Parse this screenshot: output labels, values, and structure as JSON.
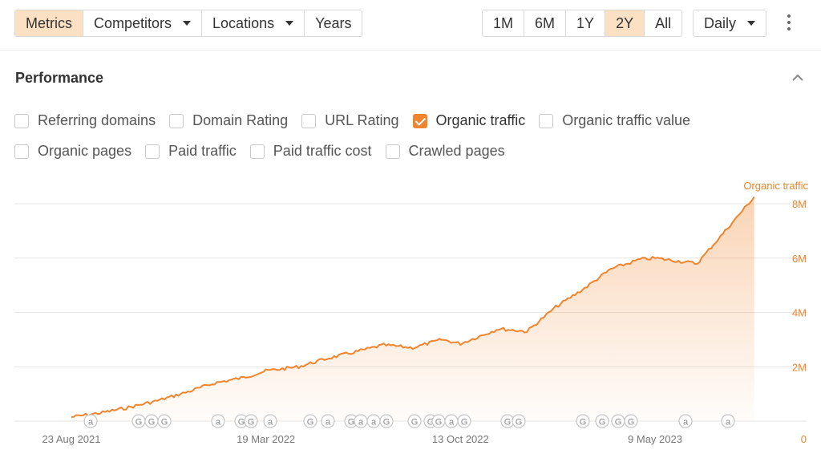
{
  "toolbar": {
    "left_tabs": [
      {
        "label": "Metrics",
        "active": true
      },
      {
        "label": "Competitors",
        "dropdown": true
      },
      {
        "label": "Locations",
        "dropdown": true
      },
      {
        "label": "Years"
      }
    ],
    "ranges": [
      {
        "label": "1M"
      },
      {
        "label": "6M"
      },
      {
        "label": "1Y"
      },
      {
        "label": "2Y",
        "active": true
      },
      {
        "label": "All"
      }
    ],
    "interval": {
      "label": "Daily"
    }
  },
  "section": {
    "title": "Performance",
    "row1": [
      {
        "label": "Referring domains",
        "checked": false
      },
      {
        "label": "Domain Rating",
        "checked": false
      },
      {
        "label": "URL Rating",
        "checked": false
      },
      {
        "label": "Organic traffic",
        "checked": true
      },
      {
        "label": "Organic traffic value",
        "checked": false
      }
    ],
    "row2": [
      {
        "label": "Organic pages",
        "checked": false
      },
      {
        "label": "Paid traffic",
        "checked": false
      },
      {
        "label": "Paid traffic cost",
        "checked": false
      },
      {
        "label": "Crawled pages",
        "checked": false
      }
    ]
  },
  "colors": {
    "accent": "#f0852d",
    "active_bg": "#fbe0c3",
    "grid": "#e6e6e6"
  },
  "chart_data": {
    "type": "area",
    "series": [
      {
        "name": "Organic traffic",
        "x": [
          "2021-08-23",
          "2021-09-23",
          "2021-10-23",
          "2021-11-23",
          "2021-12-23",
          "2022-01-23",
          "2022-02-23",
          "2022-03-19",
          "2022-04-23",
          "2022-05-23",
          "2022-06-23",
          "2022-07-23",
          "2022-08-23",
          "2022-09-23",
          "2022-10-13",
          "2022-11-23",
          "2022-12-23",
          "2023-01-23",
          "2023-02-23",
          "2023-03-23",
          "2023-04-23",
          "2023-05-09",
          "2023-06-23",
          "2023-07-23",
          "2023-08-23"
        ],
        "values": [
          0.15,
          0.3,
          0.5,
          0.75,
          1.05,
          1.4,
          1.6,
          1.85,
          2.0,
          2.3,
          2.55,
          2.8,
          2.7,
          3.0,
          2.85,
          3.4,
          3.3,
          4.2,
          4.9,
          5.6,
          5.95,
          6.0,
          5.8,
          7.0,
          8.25
        ]
      }
    ],
    "y_unit": "M",
    "ylim": [
      0,
      8
    ],
    "y_ticks": [
      "0",
      "2M",
      "4M",
      "6M",
      "8M"
    ],
    "x_ticks": [
      "23 Aug 2021",
      "19 Mar 2022",
      "13 Oct 2022",
      "9 May 2023"
    ],
    "annotations": [
      "a",
      "G",
      "G",
      "G",
      "a",
      "G",
      "G",
      "a",
      "G",
      "a",
      "G",
      "a",
      "a",
      "G",
      "G",
      "G",
      "G",
      "a",
      "G",
      "G",
      "G",
      "G",
      "G",
      "G",
      "G",
      "a",
      "a"
    ],
    "grid": true
  }
}
